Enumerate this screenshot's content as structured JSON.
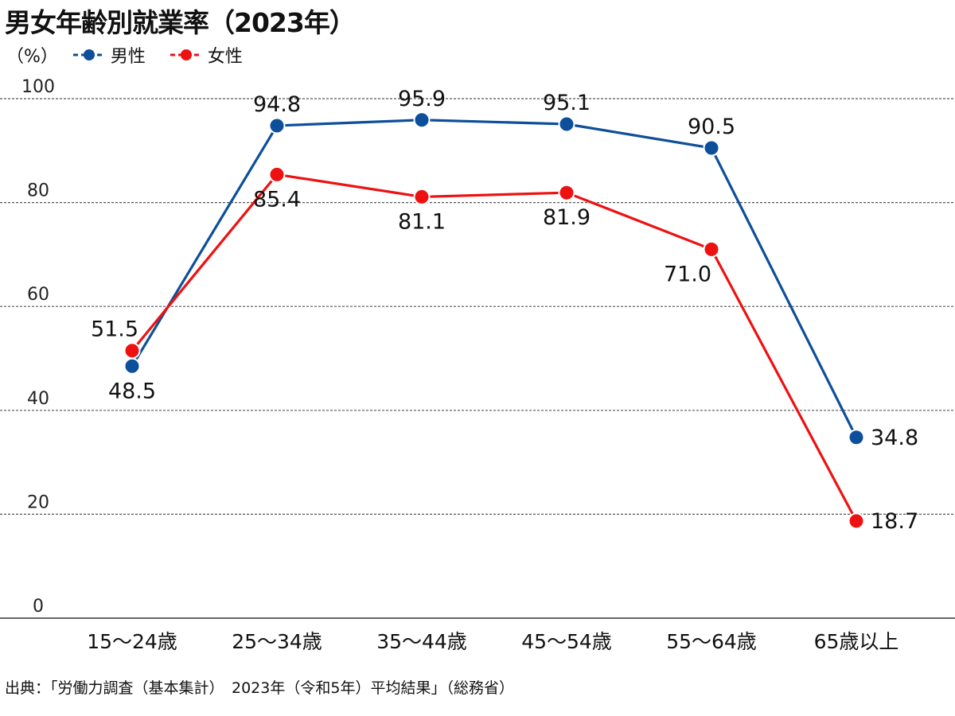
{
  "chart_data": {
    "type": "line",
    "title": "男女年齢別就業率（2023年）",
    "unit_label": "（%）",
    "categories": [
      "15〜24歳",
      "25〜34歳",
      "35〜44歳",
      "45〜54歳",
      "55〜64歳",
      "65歳以上"
    ],
    "series": [
      {
        "name": "男性",
        "color": "#0d4f9a",
        "values": [
          48.5,
          94.8,
          95.9,
          95.1,
          90.5,
          34.8
        ],
        "labels": [
          "48.5",
          "94.8",
          "95.9",
          "95.1",
          "90.5",
          "34.8"
        ]
      },
      {
        "name": "女性",
        "color": "#ee1111",
        "values": [
          51.5,
          85.4,
          81.1,
          81.9,
          71.0,
          18.7
        ],
        "labels": [
          "51.5",
          "85.4",
          "81.1",
          "81.9",
          "71.0",
          "18.7"
        ]
      }
    ],
    "y_ticks": [
      "0",
      "20",
      "40",
      "60",
      "80",
      "100"
    ],
    "ylim": [
      0,
      100
    ],
    "grid": true,
    "legend_position": "top-left"
  },
  "source": "出典：「労働力調査（基本集計）　2023年（令和5年）平均結果」（総務省）"
}
